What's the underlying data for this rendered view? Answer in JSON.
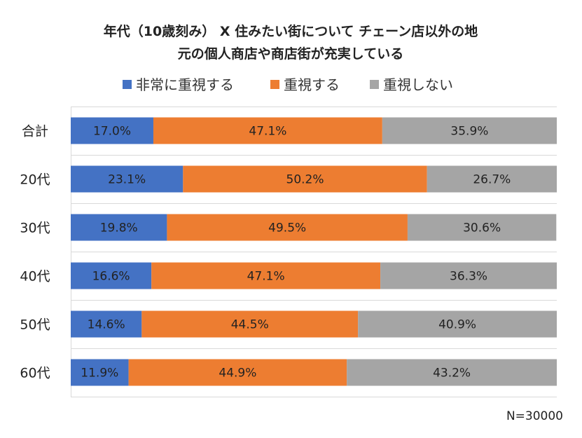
{
  "chart_data": {
    "type": "bar",
    "orientation": "horizontal",
    "stacked": "100%",
    "title_lines": [
      "年代（10歳刻み） X 住みたい街について チェーン店以外の地",
      "元の個人商店や商店街が充実している"
    ],
    "categories": [
      "合計",
      "20代",
      "30代",
      "40代",
      "50代",
      "60代"
    ],
    "series": [
      {
        "name": "非常に重視する",
        "color": "#4472C4",
        "values": [
          17.0,
          23.1,
          19.8,
          16.6,
          14.6,
          11.9
        ]
      },
      {
        "name": "重視する",
        "color": "#ED7D31",
        "values": [
          47.1,
          50.2,
          49.5,
          47.1,
          44.5,
          44.9
        ]
      },
      {
        "name": "重視しない",
        "color": "#A5A5A5",
        "values": [
          35.9,
          26.7,
          30.6,
          36.3,
          40.9,
          43.2
        ]
      }
    ],
    "value_format": "%",
    "xlim": [
      0,
      100
    ],
    "grid": true,
    "legend_position": "top",
    "annotation": "N=30000"
  }
}
